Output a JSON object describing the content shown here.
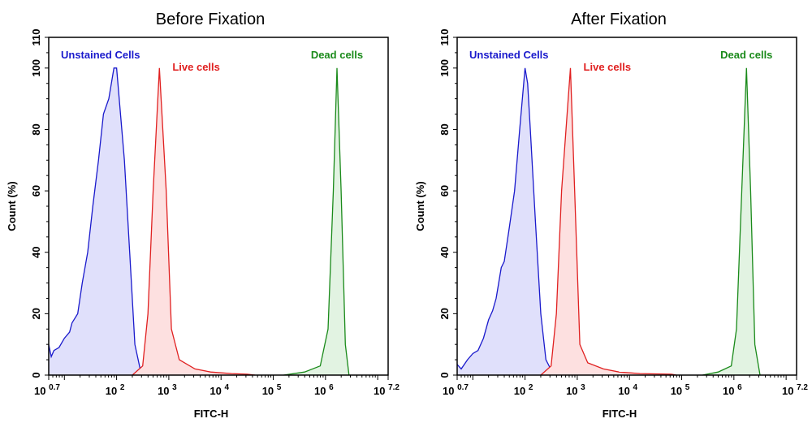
{
  "chart_data": [
    {
      "type": "area",
      "title": "Before Fixation",
      "xlabel": "FITC-H",
      "ylabel": "Count  (%)",
      "xscale": "log",
      "xlim": [
        5.0119,
        15848932
      ],
      "ylim": [
        0,
        110
      ],
      "yticks": [
        0,
        20,
        40,
        60,
        80,
        100,
        110
      ],
      "xticks": [
        {
          "base": "10",
          "exp": "0.7"
        },
        {
          "base": "10",
          "exp": "2"
        },
        {
          "base": "10",
          "exp": "3"
        },
        {
          "base": "10",
          "exp": "4"
        },
        {
          "base": "10",
          "exp": "5"
        },
        {
          "base": "10",
          "exp": "6"
        },
        {
          "base": "10",
          "exp": "7.2"
        }
      ],
      "grid": false,
      "series": [
        {
          "name": "Unstained Cells",
          "color": "#1a1acc",
          "fill": "#e0e0fb",
          "points": [
            [
              5.01,
              10
            ],
            [
              5.6,
              6
            ],
            [
              6.3,
              8
            ],
            [
              7.9,
              9
            ],
            [
              10,
              12
            ],
            [
              12.6,
              14
            ],
            [
              14,
              17
            ],
            [
              18,
              20
            ],
            [
              22,
              30
            ],
            [
              28,
              40
            ],
            [
              35,
              55
            ],
            [
              45,
              70
            ],
            [
              56,
              85
            ],
            [
              71,
              90
            ],
            [
              89,
              100
            ],
            [
              100,
              100
            ],
            [
              112,
              90
            ],
            [
              141,
              70
            ],
            [
              178,
              40
            ],
            [
              224,
              10
            ],
            [
              282,
              2
            ],
            [
              355,
              0
            ]
          ]
        },
        {
          "name": "Live cells",
          "color": "#e02020",
          "fill": "#fde0e0",
          "points": [
            [
              200,
              0
            ],
            [
              316,
              3
            ],
            [
              398,
              20
            ],
            [
              501,
              60
            ],
            [
              661,
              100
            ],
            [
              891,
              60
            ],
            [
              1122,
              15
            ],
            [
              1585,
              5
            ],
            [
              3162,
              2
            ],
            [
              6310,
              1
            ],
            [
              15849,
              0.5
            ],
            [
              31623,
              0.3
            ],
            [
              44668,
              0
            ]
          ]
        },
        {
          "name": "Dead cells",
          "color": "#1a8a1a",
          "fill": "#e2f3e2",
          "points": [
            [
              158489,
              0
            ],
            [
              398107,
              1
            ],
            [
              794328,
              3
            ],
            [
              1122018,
              15
            ],
            [
              1412538,
              60
            ],
            [
              1659587,
              100
            ],
            [
              1995262,
              60
            ],
            [
              2398833,
              10
            ],
            [
              2818383,
              0
            ]
          ]
        }
      ]
    },
    {
      "type": "area",
      "title": "After Fixation",
      "xlabel": "FITC-H",
      "ylabel": "Count  (%)",
      "xscale": "log",
      "xlim": [
        5.0119,
        15848932
      ],
      "ylim": [
        0,
        110
      ],
      "yticks": [
        0,
        20,
        40,
        60,
        80,
        100,
        110
      ],
      "xticks": [
        {
          "base": "10",
          "exp": "0.7"
        },
        {
          "base": "10",
          "exp": "2"
        },
        {
          "base": "10",
          "exp": "3"
        },
        {
          "base": "10",
          "exp": "4"
        },
        {
          "base": "10",
          "exp": "5"
        },
        {
          "base": "10",
          "exp": "6"
        },
        {
          "base": "10",
          "exp": "7.2"
        }
      ],
      "grid": false,
      "series": [
        {
          "name": "Unstained Cells",
          "color": "#1a1acc",
          "fill": "#e0e0fb",
          "points": [
            [
              5.01,
              3.5
            ],
            [
              6,
              2
            ],
            [
              7.9,
              5
            ],
            [
              10,
              7
            ],
            [
              12.6,
              8
            ],
            [
              16,
              12
            ],
            [
              20,
              18
            ],
            [
              24,
              21
            ],
            [
              28,
              25
            ],
            [
              35,
              35
            ],
            [
              40,
              37
            ],
            [
              50,
              48
            ],
            [
              63,
              60
            ],
            [
              79,
              80
            ],
            [
              100,
              100
            ],
            [
              112,
              95
            ],
            [
              126,
              80
            ],
            [
              158,
              50
            ],
            [
              200,
              20
            ],
            [
              251,
              5
            ],
            [
              355,
              0
            ]
          ]
        },
        {
          "name": "Live cells",
          "color": "#e02020",
          "fill": "#fde0e0",
          "points": [
            [
              200,
              0
            ],
            [
              316,
              3
            ],
            [
              398,
              20
            ],
            [
              501,
              60
            ],
            [
              741,
              100
            ],
            [
              891,
              60
            ],
            [
              1122,
              10
            ],
            [
              1585,
              4
            ],
            [
              3162,
              2
            ],
            [
              6310,
              1
            ],
            [
              15849,
              0.5
            ],
            [
              63096,
              0.3
            ],
            [
              79433,
              0
            ]
          ]
        },
        {
          "name": "Dead cells",
          "color": "#1a8a1a",
          "fill": "#e2f3e2",
          "points": [
            [
              251189,
              0
            ],
            [
              501187,
              1
            ],
            [
              891251,
              3
            ],
            [
              1122018,
              15
            ],
            [
              1412538,
              60
            ],
            [
              1737801,
              100
            ],
            [
              2089296,
              60
            ],
            [
              2511886,
              10
            ],
            [
              3162278,
              0
            ]
          ]
        }
      ]
    }
  ]
}
